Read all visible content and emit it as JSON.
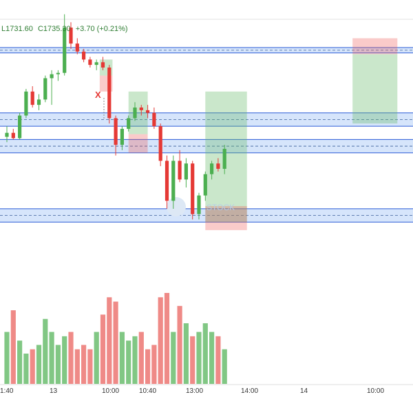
{
  "ohlc_readout": {
    "low": "L1731.60",
    "close": "C1735.30",
    "change": "+3.70 (+0.21%)"
  },
  "watermark": "STOCK",
  "marker_label": "X",
  "chart_data": {
    "type": "candlestick",
    "title": "",
    "xlabel": "",
    "ylabel": "",
    "x_ticks": [
      "1:40",
      "13",
      "10:00",
      "10:40",
      "13:00",
      "14:00",
      "14",
      "10:00"
    ],
    "price_range": [
      1695,
      1770
    ],
    "candles": [
      {
        "o": 1729,
        "h": 1733,
        "l": 1727,
        "c": 1730.5
      },
      {
        "o": 1730.5,
        "h": 1732,
        "l": 1728,
        "c": 1728.5
      },
      {
        "o": 1728.5,
        "h": 1738,
        "l": 1728,
        "c": 1737
      },
      {
        "o": 1737,
        "h": 1747,
        "l": 1736,
        "c": 1746
      },
      {
        "o": 1746,
        "h": 1748,
        "l": 1740,
        "c": 1741
      },
      {
        "o": 1741,
        "h": 1745,
        "l": 1739,
        "c": 1743
      },
      {
        "o": 1743,
        "h": 1752,
        "l": 1742,
        "c": 1751
      },
      {
        "o": 1751,
        "h": 1754,
        "l": 1741,
        "c": 1752.5
      },
      {
        "o": 1752.5,
        "h": 1754,
        "l": 1750,
        "c": 1753
      },
      {
        "o": 1753,
        "h": 1775,
        "l": 1752,
        "c": 1770
      },
      {
        "o": 1770,
        "h": 1772,
        "l": 1762,
        "c": 1764
      },
      {
        "o": 1764,
        "h": 1766,
        "l": 1760,
        "c": 1761
      },
      {
        "o": 1761,
        "h": 1762,
        "l": 1757,
        "c": 1758
      },
      {
        "o": 1758,
        "h": 1759,
        "l": 1755,
        "c": 1756
      },
      {
        "o": 1756,
        "h": 1758,
        "l": 1754,
        "c": 1757
      },
      {
        "o": 1757,
        "h": 1759,
        "l": 1754,
        "c": 1755
      },
      {
        "o": 1755,
        "h": 1756,
        "l": 1734,
        "c": 1736
      },
      {
        "o": 1736,
        "h": 1737,
        "l": 1722,
        "c": 1726
      },
      {
        "o": 1726,
        "h": 1733,
        "l": 1724,
        "c": 1732
      },
      {
        "o": 1732,
        "h": 1737,
        "l": 1731,
        "c": 1736
      },
      {
        "o": 1736,
        "h": 1742,
        "l": 1735,
        "c": 1740
      },
      {
        "o": 1740,
        "h": 1741,
        "l": 1737,
        "c": 1739
      },
      {
        "o": 1739,
        "h": 1741,
        "l": 1736,
        "c": 1738
      },
      {
        "o": 1738,
        "h": 1740,
        "l": 1732,
        "c": 1733
      },
      {
        "o": 1733,
        "h": 1734,
        "l": 1718,
        "c": 1720
      },
      {
        "o": 1720,
        "h": 1722,
        "l": 1702,
        "c": 1705
      },
      {
        "o": 1705,
        "h": 1722,
        "l": 1702,
        "c": 1720
      },
      {
        "o": 1720,
        "h": 1724,
        "l": 1712,
        "c": 1713
      },
      {
        "o": 1713,
        "h": 1721,
        "l": 1710,
        "c": 1719
      },
      {
        "o": 1719,
        "h": 1720,
        "l": 1698,
        "c": 1700
      },
      {
        "o": 1700,
        "h": 1708,
        "l": 1698,
        "c": 1707
      },
      {
        "o": 1707,
        "h": 1716,
        "l": 1705,
        "c": 1715
      },
      {
        "o": 1715,
        "h": 1720,
        "l": 1713,
        "c": 1719
      },
      {
        "o": 1719,
        "h": 1721,
        "l": 1716,
        "c": 1717
      },
      {
        "o": 1717,
        "h": 1726,
        "l": 1715,
        "c": 1724.5
      }
    ],
    "volume": [
      60,
      85,
      50,
      35,
      40,
      45,
      75,
      60,
      45,
      55,
      60,
      40,
      45,
      40,
      60,
      80,
      100,
      95,
      60,
      50,
      55,
      60,
      40,
      45,
      100,
      105,
      60,
      90,
      70,
      55,
      60,
      70,
      60,
      55,
      40
    ],
    "zones": [
      {
        "top": 1762.5,
        "bottom": 1760.5
      },
      {
        "top": 1738,
        "bottom": 1733
      },
      {
        "top": 1728,
        "bottom": 1723
      },
      {
        "top": 1702,
        "bottom": 1697
      }
    ],
    "trade_boxes": [
      {
        "kind": "loss",
        "x_from": 14.5,
        "x_to": 16.5,
        "top": 1752,
        "bottom": 1746
      },
      {
        "kind": "profit",
        "x_from": 14.5,
        "x_to": 16.5,
        "top": 1758,
        "bottom": 1752
      },
      {
        "kind": "profit",
        "x_from": 19,
        "x_to": 22,
        "top": 1746,
        "bottom": 1730
      },
      {
        "kind": "loss",
        "x_from": 19,
        "x_to": 22,
        "top": 1730,
        "bottom": 1723
      },
      {
        "kind": "profit",
        "x_from": 31,
        "x_to": 37.5,
        "top": 1746,
        "bottom": 1697
      },
      {
        "kind": "loss",
        "x_from": 31,
        "x_to": 37.5,
        "top": 1703,
        "bottom": 1694
      },
      {
        "kind": "loss",
        "x_from": 54,
        "x_to": 61,
        "top": 1766,
        "bottom": 1760
      },
      {
        "kind": "profit",
        "x_from": 54,
        "x_to": 61,
        "top": 1760,
        "bottom": 1734
      }
    ],
    "colors": {
      "up": "#4caf50",
      "down": "#e53935",
      "zone_fill": "#c8dcfa",
      "zone_line": "#2a5bd7",
      "profit": "#66bb6a",
      "loss": "#ef5350"
    }
  }
}
